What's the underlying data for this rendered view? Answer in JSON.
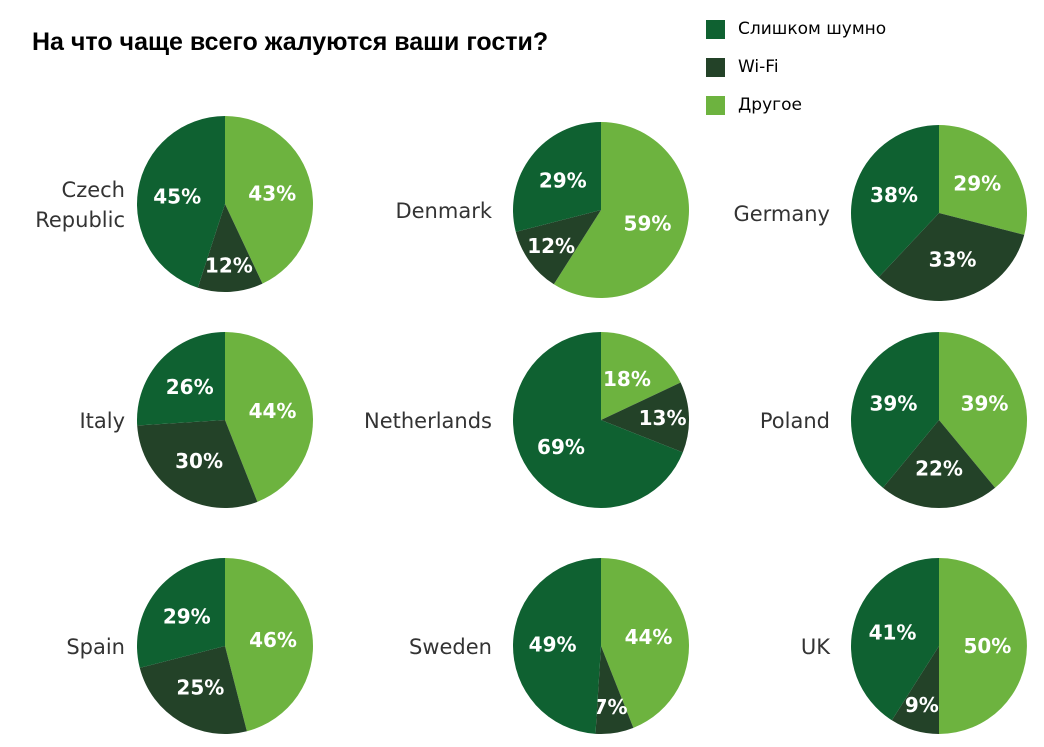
{
  "chart_data": {
    "type": "pie",
    "title": "На что чаще всего жалуются ваши гости?",
    "legend_position": "top-right",
    "series": [
      {
        "name": "Слишком шумно",
        "color": "#0f6131"
      },
      {
        "name": "Wi-Fi",
        "color": "#234228"
      },
      {
        "name": "Другое",
        "color": "#6db33f"
      }
    ],
    "pies": [
      {
        "country": "Czech Republic",
        "lines": [
          "Czech",
          "Republic"
        ],
        "noise": 45,
        "wifi": 12,
        "other": 43
      },
      {
        "country": "Denmark",
        "lines": [
          "Denmark"
        ],
        "noise": 29,
        "wifi": 12,
        "other": 59
      },
      {
        "country": "Germany",
        "lines": [
          "Germany"
        ],
        "noise": 38,
        "wifi": 33,
        "other": 29
      },
      {
        "country": "Italy",
        "lines": [
          "Italy"
        ],
        "noise": 26,
        "wifi": 30,
        "other": 44
      },
      {
        "country": "Netherlands",
        "lines": [
          "Netherlands"
        ],
        "noise": 69,
        "wifi": 13,
        "other": 18
      },
      {
        "country": "Poland",
        "lines": [
          "Poland"
        ],
        "noise": 39,
        "wifi": 22,
        "other": 39
      },
      {
        "country": "Spain",
        "lines": [
          "Spain"
        ],
        "noise": 29,
        "wifi": 25,
        "other": 46
      },
      {
        "country": "Sweden",
        "lines": [
          "Sweden"
        ],
        "noise": 49,
        "wifi": 7,
        "other": 44
      },
      {
        "country": "UK",
        "lines": [
          "UK"
        ],
        "noise": 41,
        "wifi": 9,
        "other": 50
      }
    ]
  }
}
